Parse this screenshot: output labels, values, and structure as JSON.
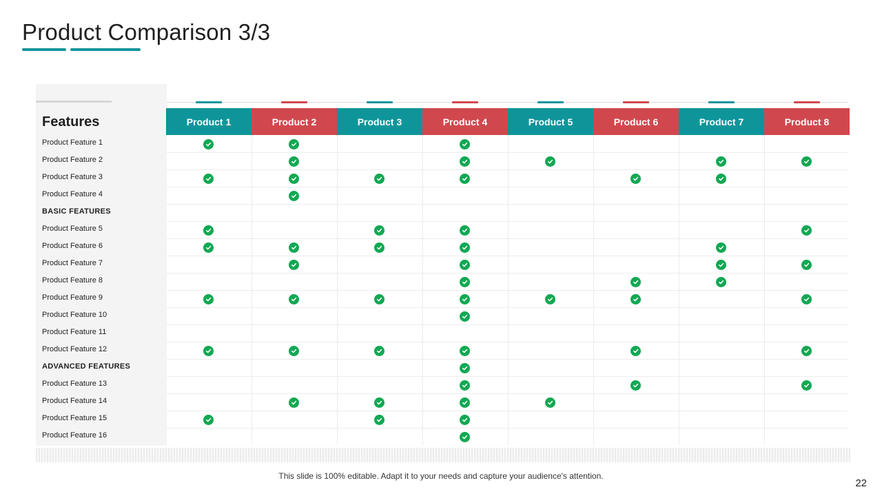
{
  "title": "Product Comparison 3/3",
  "features_header": "Features",
  "colors": {
    "teal": "#0e959a",
    "red": "#d0484e",
    "check": "#12a853"
  },
  "products": [
    {
      "label": "Product 1",
      "color": "teal"
    },
    {
      "label": "Product 2",
      "color": "red"
    },
    {
      "label": "Product 3",
      "color": "teal"
    },
    {
      "label": "Product 4",
      "color": "red"
    },
    {
      "label": "Product 5",
      "color": "teal"
    },
    {
      "label": "Product 6",
      "color": "red"
    },
    {
      "label": "Product 7",
      "color": "teal"
    },
    {
      "label": "Product 8",
      "color": "red"
    }
  ],
  "rows": [
    {
      "label": "Product Feature 1",
      "section": false,
      "checks": [
        true,
        true,
        false,
        true,
        false,
        false,
        false,
        false
      ]
    },
    {
      "label": "Product Feature 2",
      "section": false,
      "checks": [
        false,
        true,
        false,
        true,
        true,
        false,
        true,
        true
      ]
    },
    {
      "label": "Product Feature 3",
      "section": false,
      "checks": [
        true,
        true,
        true,
        true,
        false,
        true,
        true,
        false
      ]
    },
    {
      "label": "Product Feature 4",
      "section": false,
      "checks": [
        false,
        true,
        false,
        false,
        false,
        false,
        false,
        false
      ]
    },
    {
      "label": "BASIC FEATURES",
      "section": true,
      "checks": [
        false,
        false,
        false,
        false,
        false,
        false,
        false,
        false
      ]
    },
    {
      "label": "Product Feature 5",
      "section": false,
      "checks": [
        true,
        false,
        true,
        true,
        false,
        false,
        false,
        true
      ]
    },
    {
      "label": "Product Feature 6",
      "section": false,
      "checks": [
        true,
        true,
        true,
        true,
        false,
        false,
        true,
        false
      ]
    },
    {
      "label": "Product Feature 7",
      "section": false,
      "checks": [
        false,
        true,
        false,
        true,
        false,
        false,
        true,
        true
      ]
    },
    {
      "label": "Product Feature 8",
      "section": false,
      "checks": [
        false,
        false,
        false,
        true,
        false,
        true,
        true,
        false
      ]
    },
    {
      "label": "Product Feature 9",
      "section": false,
      "checks": [
        true,
        true,
        true,
        true,
        true,
        true,
        false,
        true
      ]
    },
    {
      "label": "Product Feature 10",
      "section": false,
      "checks": [
        false,
        false,
        false,
        true,
        false,
        false,
        false,
        false
      ]
    },
    {
      "label": "Product Feature 11",
      "section": false,
      "checks": [
        false,
        false,
        false,
        false,
        false,
        false,
        false,
        false
      ]
    },
    {
      "label": "Product Feature 12",
      "section": false,
      "checks": [
        true,
        true,
        true,
        true,
        false,
        true,
        false,
        true
      ]
    },
    {
      "label": "ADVANCED FEATURES",
      "section": true,
      "checks": [
        false,
        false,
        false,
        true,
        false,
        false,
        false,
        false
      ]
    },
    {
      "label": "Product Feature 13",
      "section": false,
      "checks": [
        false,
        false,
        false,
        true,
        false,
        true,
        false,
        true
      ]
    },
    {
      "label": "Product Feature 14",
      "section": false,
      "checks": [
        false,
        true,
        true,
        true,
        true,
        false,
        false,
        false
      ]
    },
    {
      "label": "Product Feature 15",
      "section": false,
      "checks": [
        true,
        false,
        true,
        true,
        false,
        false,
        false,
        false
      ]
    },
    {
      "label": "Product Feature 16",
      "section": false,
      "checks": [
        false,
        false,
        false,
        true,
        false,
        false,
        false,
        false
      ]
    }
  ],
  "footer": "This slide is 100% editable. Adapt it to your needs and capture your audience's attention.",
  "page_number": "22"
}
